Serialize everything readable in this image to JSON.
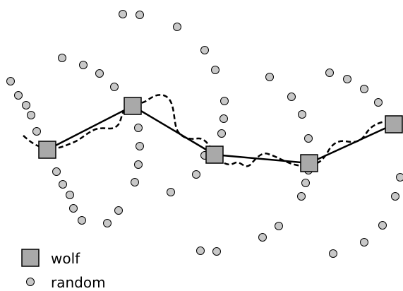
{
  "colors": {
    "background": "#ffffff",
    "stroke": "#000000",
    "wolf_fill": "#a9a9a9",
    "random_fill": "#c8c8c8"
  },
  "legend": {
    "wolf_label": "wolf",
    "random_label": "random"
  }
}
